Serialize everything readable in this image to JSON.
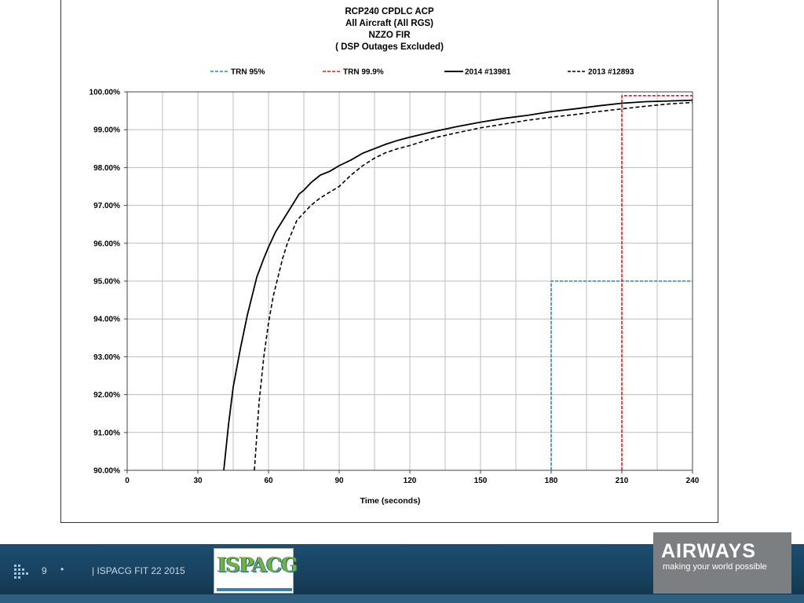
{
  "chart_data": {
    "type": "line",
    "title_lines": [
      "RCP240 CPDLC  ACP",
      "All Aircraft (All RGS)",
      "NZZO FIR",
      "( DSP Outages Excluded)"
    ],
    "xlabel": "Time (seconds)",
    "ylabel": "",
    "xlim": [
      0,
      240
    ],
    "ylim": [
      90,
      100
    ],
    "x_ticks": [
      0,
      30,
      60,
      90,
      120,
      150,
      180,
      210,
      240
    ],
    "x_tick_labels": [
      "0",
      "30",
      "60",
      "90",
      "120",
      "150",
      "180",
      "210",
      "240"
    ],
    "y_ticks": [
      90,
      91,
      92,
      93,
      94,
      95,
      96,
      97,
      98,
      99,
      100
    ],
    "y_tick_labels": [
      "90.00%",
      "91.00%",
      "92.00%",
      "93.00%",
      "94.00%",
      "95.00%",
      "96.00%",
      "97.00%",
      "98.00%",
      "99.00%",
      "100.00%"
    ],
    "grid": true,
    "legend_position": "top",
    "series": [
      {
        "name": "TRN 95%",
        "color": "#2e86c1",
        "dash": "dashed",
        "x": [
          180,
          180,
          240
        ],
        "y": [
          90,
          95,
          95
        ]
      },
      {
        "name": "TRN 99.9%",
        "color": "#e41a1c",
        "dash": "dashed",
        "x": [
          210,
          210,
          240
        ],
        "y": [
          90,
          99.9,
          99.9
        ]
      },
      {
        "name": "2014 #13981",
        "color": "#000000",
        "dash": "solid",
        "x": [
          41,
          43,
          45,
          48,
          51,
          53,
          55,
          58,
          60,
          63,
          66,
          70,
          73,
          75,
          78,
          82,
          86,
          90,
          95,
          100,
          105,
          110,
          115,
          120,
          130,
          140,
          150,
          160,
          170,
          180,
          190,
          200,
          210,
          220,
          230,
          240
        ],
        "y": [
          90,
          91.2,
          92.2,
          93.2,
          94.1,
          94.6,
          95.1,
          95.6,
          95.9,
          96.3,
          96.6,
          97.0,
          97.3,
          97.4,
          97.6,
          97.8,
          97.9,
          98.05,
          98.2,
          98.38,
          98.5,
          98.62,
          98.72,
          98.8,
          98.95,
          99.08,
          99.2,
          99.3,
          99.38,
          99.48,
          99.55,
          99.63,
          99.7,
          99.74,
          99.76,
          99.78
        ]
      },
      {
        "name": "2013 #12893",
        "color": "#000000",
        "dash": "dashed",
        "x": [
          54,
          56,
          58,
          60,
          62,
          64,
          66,
          68,
          70,
          72,
          75,
          78,
          82,
          86,
          90,
          95,
          100,
          105,
          110,
          115,
          120,
          130,
          140,
          150,
          160,
          170,
          180,
          190,
          200,
          210,
          220,
          230,
          240
        ],
        "y": [
          90,
          91.8,
          93.0,
          93.9,
          94.6,
          95.1,
          95.6,
          96.0,
          96.3,
          96.6,
          96.8,
          97.0,
          97.2,
          97.35,
          97.5,
          97.8,
          98.05,
          98.25,
          98.4,
          98.5,
          98.58,
          98.78,
          98.92,
          99.05,
          99.15,
          99.25,
          99.33,
          99.4,
          99.48,
          99.55,
          99.62,
          99.68,
          99.72
        ]
      }
    ]
  },
  "footer": {
    "page_number": "9",
    "bullet": "•",
    "text": "| ISPACG FIT 22 2015"
  },
  "ispacg_logo": {
    "text": "ISPACG"
  },
  "airways_logo": {
    "name": "AIRWAYS",
    "tagline": "making your world possible"
  }
}
